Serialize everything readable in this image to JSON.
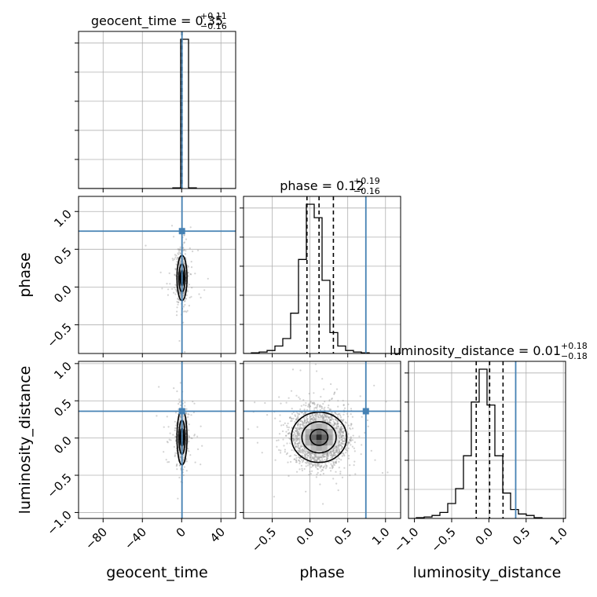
{
  "chart_data": {
    "type": "corner",
    "parameters": [
      "geocent_time",
      "phase",
      "luminosity_distance"
    ],
    "colors": {
      "truth": "#4682b4",
      "hist": "#000000",
      "grid": "#b0b0b0",
      "points": "#9e9e9e"
    },
    "titles": [
      {
        "param": "geocent_time",
        "name": "geocent_time",
        "median": "0.35",
        "plus": "+0.11",
        "minus": "−0.16"
      },
      {
        "param": "phase",
        "name": "phase",
        "median": "0.12",
        "plus": "+0.19",
        "minus": "−0.16"
      },
      {
        "param": "luminosity_distance",
        "name": "luminosity_distance",
        "median": "0.01",
        "plus": "+0.18",
        "minus": "−0.18"
      }
    ],
    "axes": {
      "geocent_time": {
        "range": [
          -105,
          55
        ],
        "ticks": [
          -80,
          -40,
          0,
          40
        ],
        "tick_labels": [
          "−80",
          "−40",
          "0",
          "40"
        ]
      },
      "phase": {
        "range": [
          -0.88,
          1.2
        ],
        "ticks": [
          -0.5,
          0.0,
          0.5,
          1.0
        ],
        "tick_labels": [
          "−0.5",
          "0.0",
          "0.5",
          "1.0"
        ]
      },
      "luminosity_distance": {
        "range": [
          -1.08,
          1.03
        ],
        "ticks": [
          -1.0,
          -0.5,
          0.0,
          0.5,
          1.0
        ],
        "tick_labels": [
          "−1.0",
          "−0.5",
          "0.0",
          "0.5",
          "1.0"
        ]
      }
    },
    "truths": {
      "geocent_time": 0.35,
      "phase": 0.74,
      "luminosity_distance": 0.36
    },
    "quantile_lines": {
      "geocent_time": [
        0.19,
        0.35,
        0.46
      ],
      "phase": [
        -0.04,
        0.12,
        0.31
      ],
      "luminosity_distance": [
        -0.17,
        0.01,
        0.19
      ]
    },
    "histograms": {
      "geocent_time": {
        "edges": [
          -105,
          -97,
          -89,
          -81,
          -73,
          -65,
          -57,
          -49,
          -41,
          -33,
          -25,
          -17,
          -9,
          -1,
          7,
          15,
          23,
          31,
          39,
          47,
          55
        ],
        "counts": [
          0,
          0,
          0,
          0,
          0,
          0,
          0,
          0,
          0,
          0,
          0,
          0,
          0.5,
          100,
          0.5,
          0,
          0,
          0,
          0,
          0
        ]
      },
      "phase": {
        "edges": [
          -0.88,
          -0.776,
          -0.672,
          -0.568,
          -0.464,
          -0.36,
          -0.256,
          -0.152,
          -0.048,
          0.056,
          0.16,
          0.264,
          0.368,
          0.472,
          0.576,
          0.68,
          0.784,
          0.888,
          0.992,
          1.096,
          1.2
        ],
        "counts": [
          0,
          0.5,
          1,
          2,
          5,
          10,
          27,
          63,
          100,
          91,
          49,
          14,
          5,
          2,
          1,
          0.5,
          0,
          0,
          0,
          0
        ]
      },
      "luminosity_distance": {
        "edges": [
          -1.08,
          -0.9745,
          -0.869,
          -0.7635,
          -0.658,
          -0.5525,
          -0.447,
          -0.3415,
          -0.236,
          -0.1305,
          -0.025,
          0.0805,
          0.186,
          0.2915,
          0.397,
          0.5025,
          0.608,
          0.7135,
          0.819,
          0.9245,
          1.03
        ],
        "counts": [
          0,
          0.5,
          1,
          2,
          4,
          10,
          20,
          42,
          78,
          100,
          76,
          42,
          17,
          6,
          3,
          2,
          0.5,
          0,
          0,
          0
        ]
      }
    },
    "posterior_center": {
      "geocent_time": 0.35,
      "phase": 0.12,
      "luminosity_distance": 0.01
    },
    "posterior_sigma": {
      "geocent_time": 2.5,
      "phase": 0.17,
      "luminosity_distance": 0.18
    }
  }
}
